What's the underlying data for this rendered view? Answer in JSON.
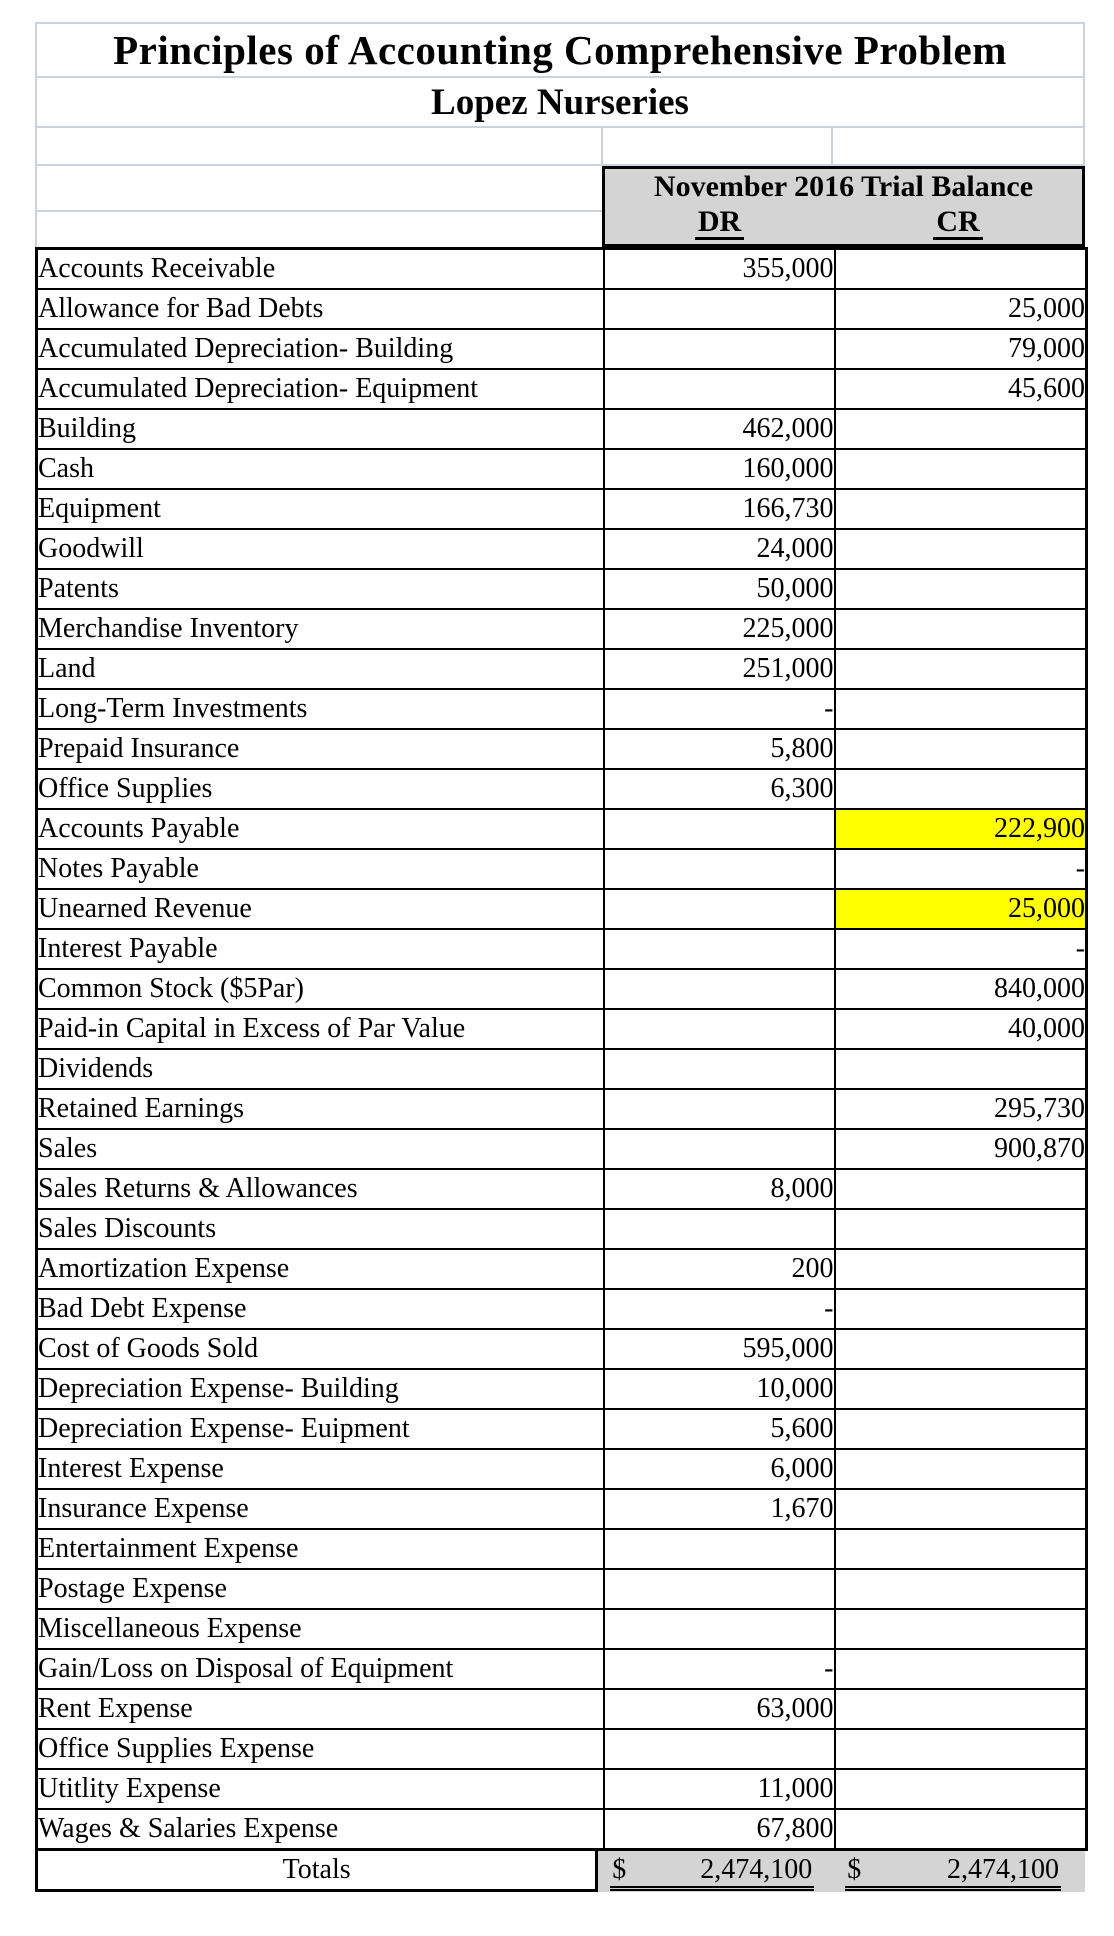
{
  "sheet_title": "Principles of Accounting Comprehensive Problem",
  "company": "Lopez Nurseries",
  "trial_balance": {
    "header": "November 2016 Trial Balance",
    "dr_label": "DR",
    "cr_label": "CR",
    "rows": [
      {
        "account": "Accounts Receivable",
        "dr": "355,000",
        "cr": "",
        "highlight": false
      },
      {
        "account": "Allowance for Bad Debts",
        "dr": "",
        "cr": "25,000",
        "highlight": false
      },
      {
        "account": "Accumulated Depreciation- Building",
        "dr": "",
        "cr": "79,000",
        "highlight": false
      },
      {
        "account": "Accumulated Depreciation- Equipment",
        "dr": "",
        "cr": "45,600",
        "highlight": false
      },
      {
        "account": "Building",
        "dr": "462,000",
        "cr": "",
        "highlight": false
      },
      {
        "account": "Cash",
        "dr": "160,000",
        "cr": "",
        "highlight": false
      },
      {
        "account": "Equipment",
        "dr": "166,730",
        "cr": "",
        "highlight": false
      },
      {
        "account": "Goodwill",
        "dr": "24,000",
        "cr": "",
        "highlight": false
      },
      {
        "account": "Patents",
        "dr": "50,000",
        "cr": "",
        "highlight": false
      },
      {
        "account": "Merchandise Inventory",
        "dr": "225,000",
        "cr": "",
        "highlight": false
      },
      {
        "account": "Land",
        "dr": "251,000",
        "cr": "",
        "highlight": false
      },
      {
        "account": "Long-Term Investments",
        "dr": "-",
        "cr": "",
        "highlight": false
      },
      {
        "account": "Prepaid Insurance",
        "dr": "5,800",
        "cr": "",
        "highlight": false
      },
      {
        "account": "Office Supplies",
        "dr": "6,300",
        "cr": "",
        "highlight": false
      },
      {
        "account": "Accounts Payable",
        "dr": "",
        "cr": "222,900",
        "highlight": true
      },
      {
        "account": "Notes Payable",
        "dr": "",
        "cr": "-",
        "highlight": false
      },
      {
        "account": "Unearned Revenue",
        "dr": "",
        "cr": "25,000",
        "highlight": true
      },
      {
        "account": "Interest Payable",
        "dr": "",
        "cr": "-",
        "highlight": false
      },
      {
        "account": "Common Stock ($5Par)",
        "dr": "",
        "cr": "840,000",
        "highlight": false
      },
      {
        "account": "Paid-in Capital in Excess of Par Value",
        "dr": "",
        "cr": "40,000",
        "highlight": false
      },
      {
        "account": "Dividends",
        "dr": "",
        "cr": "",
        "highlight": false
      },
      {
        "account": "Retained Earnings",
        "dr": "",
        "cr": "295,730",
        "highlight": false
      },
      {
        "account": "Sales",
        "dr": "",
        "cr": "900,870",
        "highlight": false
      },
      {
        "account": "Sales Returns & Allowances",
        "dr": "8,000",
        "cr": "",
        "highlight": false
      },
      {
        "account": "Sales Discounts",
        "dr": "",
        "cr": "",
        "highlight": false
      },
      {
        "account": "Amortization Expense",
        "dr": "200",
        "cr": "",
        "highlight": false
      },
      {
        "account": "Bad Debt Expense",
        "dr": "-",
        "cr": "",
        "highlight": false
      },
      {
        "account": "Cost of Goods Sold",
        "dr": "595,000",
        "cr": "",
        "highlight": false
      },
      {
        "account": "Depreciation Expense- Building",
        "dr": "10,000",
        "cr": "",
        "highlight": false
      },
      {
        "account": "Depreciation Expense- Euipment",
        "dr": "5,600",
        "cr": "",
        "highlight": false
      },
      {
        "account": "Interest Expense",
        "dr": "6,000",
        "cr": "",
        "highlight": false
      },
      {
        "account": "Insurance Expense",
        "dr": "1,670",
        "cr": "",
        "highlight": false
      },
      {
        "account": "Entertainment Expense",
        "dr": "",
        "cr": "",
        "highlight": false
      },
      {
        "account": "Postage Expense",
        "dr": "",
        "cr": "",
        "highlight": false
      },
      {
        "account": "Miscellaneous Expense",
        "dr": "",
        "cr": "",
        "highlight": false
      },
      {
        "account": "Gain/Loss on Disposal of Equipment",
        "dr": "-",
        "cr": "",
        "highlight": false
      },
      {
        "account": "Rent Expense",
        "dr": "63,000",
        "cr": "",
        "highlight": false
      },
      {
        "account": "Office Supplies Expense",
        "dr": "",
        "cr": "",
        "highlight": false
      },
      {
        "account": "Utitlity Expense",
        "dr": "11,000",
        "cr": "",
        "highlight": false
      },
      {
        "account": "Wages & Salaries Expense",
        "dr": "67,800",
        "cr": "",
        "highlight": false
      }
    ],
    "totals": {
      "label": "Totals",
      "currency_symbol": "$",
      "dr": "2,474,100",
      "cr": "2,474,100"
    }
  },
  "colors": {
    "highlight": "#ffff00",
    "header_fill": "#d4d4d4",
    "gridline": "#ccd2dc"
  }
}
